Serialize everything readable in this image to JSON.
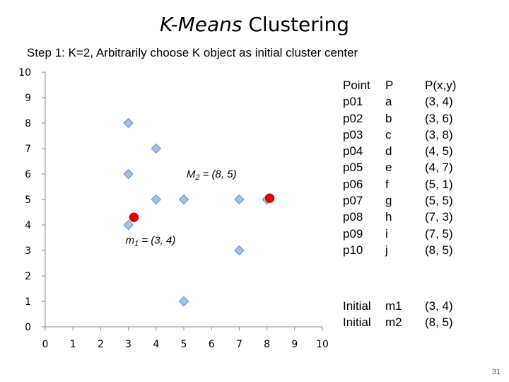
{
  "title_italic": "K-Means",
  "title_rest": " Clustering",
  "subtitle": "Step 1: K=2, Arbitrarily choose K object as initial cluster center",
  "table": {
    "headers": {
      "point": "Point",
      "p": "P",
      "xy": "P(x,y)"
    },
    "rows": [
      {
        "point": "p01",
        "p": "a",
        "xy": "(3, 4)"
      },
      {
        "point": "p02",
        "p": "b",
        "xy": "(3, 6)"
      },
      {
        "point": "p03",
        "p": "c",
        "xy": "(3, 8)"
      },
      {
        "point": "p04",
        "p": "d",
        "xy": "(4, 5)"
      },
      {
        "point": "p05",
        "p": "e",
        "xy": "(4, 7)"
      },
      {
        "point": "p06",
        "p": "f",
        "xy": "(5, 1)"
      },
      {
        "point": "p07",
        "p": "g",
        "xy": "(5, 5)"
      },
      {
        "point": "p08",
        "p": "h",
        "xy": "(7, 3)"
      },
      {
        "point": "p09",
        "p": "i",
        "xy": "(7, 5)"
      },
      {
        "point": "p10",
        "p": "j",
        "xy": "(8, 5)"
      }
    ],
    "initial": [
      {
        "label": "Initial",
        "m": "m1",
        "xy": "(3, 4)"
      },
      {
        "label": "Initial",
        "m": "m2",
        "xy": "(8, 5)"
      }
    ]
  },
  "page_number": "31",
  "chart_data": {
    "type": "scatter",
    "xlim": [
      0,
      10
    ],
    "ylim": [
      0,
      10
    ],
    "xticks": [
      0,
      1,
      2,
      3,
      4,
      5,
      6,
      7,
      8,
      9,
      10
    ],
    "yticks": [
      0,
      1,
      2,
      3,
      4,
      5,
      6,
      7,
      8,
      9,
      10
    ],
    "grid": false,
    "series": [
      {
        "points": [
          {
            "x": 3,
            "y": 4
          },
          {
            "x": 3,
            "y": 6
          },
          {
            "x": 3,
            "y": 8
          },
          {
            "x": 4,
            "y": 5
          },
          {
            "x": 4,
            "y": 7
          },
          {
            "x": 5,
            "y": 1
          },
          {
            "x": 5,
            "y": 5
          },
          {
            "x": 7,
            "y": 3
          },
          {
            "x": 7,
            "y": 5
          },
          {
            "x": 8,
            "y": 5
          }
        ],
        "marker": "diamond",
        "color": "#9dc3e6"
      },
      {
        "points": [
          {
            "x": 3.2,
            "y": 4.3
          },
          {
            "x": 8.1,
            "y": 5.05
          }
        ],
        "marker": "circle",
        "color": "#e00000"
      }
    ],
    "annotations": [
      {
        "main": "m",
        "sub": "1",
        "rest": " = (3, 4)",
        "x": 3,
        "y": 3.4
      },
      {
        "main": "M",
        "sub": "2",
        "rest": " = (8, 5)",
        "x": 5.2,
        "y": 6
      }
    ]
  }
}
